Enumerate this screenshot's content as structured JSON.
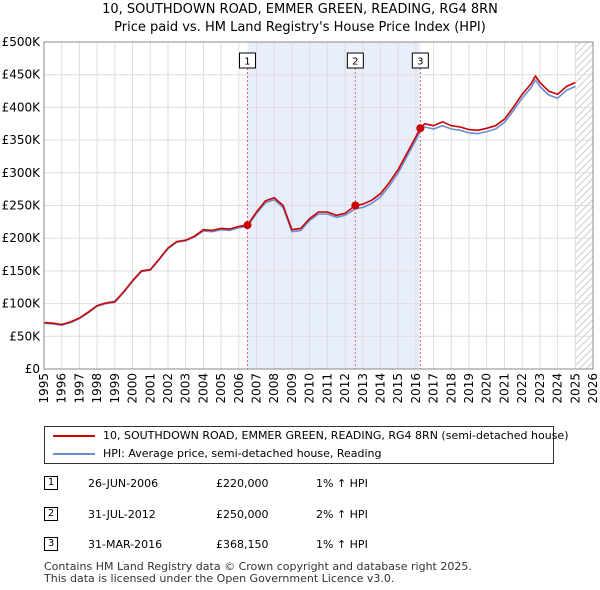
{
  "title_line1": "10, SOUTHDOWN ROAD, EMMER GREEN, READING, RG4 8RN",
  "title_line2": "Price paid vs. HM Land Registry's House Price Index (HPI)",
  "colors": {
    "property": "#cc0000",
    "hpi": "#6a8fd0",
    "shade": "#e8eefa",
    "marker_line": "#e06080"
  },
  "chart_data": {
    "type": "line",
    "title": "10, SOUTHDOWN ROAD, EMMER GREEN, READING, RG4 8RN",
    "subtitle": "Price paid vs. HM Land Registry's House Price Index (HPI)",
    "xlabel": "",
    "ylabel": "",
    "xlim": [
      1995,
      2026
    ],
    "ylim": [
      0,
      500000
    ],
    "grid": true,
    "y_ticks": [
      {
        "value": 0,
        "label": "£0"
      },
      {
        "value": 50000,
        "label": "£50K"
      },
      {
        "value": 100000,
        "label": "£100K"
      },
      {
        "value": 150000,
        "label": "£150K"
      },
      {
        "value": 200000,
        "label": "£200K"
      },
      {
        "value": 250000,
        "label": "£250K"
      },
      {
        "value": 300000,
        "label": "£300K"
      },
      {
        "value": 350000,
        "label": "£350K"
      },
      {
        "value": 400000,
        "label": "£400K"
      },
      {
        "value": 450000,
        "label": "£450K"
      },
      {
        "value": 500000,
        "label": "£500K"
      }
    ],
    "x_ticks": [
      "1995",
      "1996",
      "1997",
      "1998",
      "1999",
      "2000",
      "2001",
      "2002",
      "2003",
      "2004",
      "2005",
      "2006",
      "2007",
      "2008",
      "2009",
      "2010",
      "2011",
      "2012",
      "2013",
      "2014",
      "2015",
      "2016",
      "2017",
      "2018",
      "2019",
      "2020",
      "2021",
      "2022",
      "2023",
      "2024",
      "2025",
      "2026"
    ],
    "shaded_range": [
      2006.49,
      2016.25
    ],
    "hatched_from": 2025.0,
    "series": [
      {
        "name": "10, SOUTHDOWN ROAD, EMMER GREEN, READING, RG4 8RN (semi-detached house)",
        "color": "#cc0000",
        "x": [
          1995.0,
          1995.5,
          1996.0,
          1996.5,
          1997.0,
          1997.5,
          1998.0,
          1998.5,
          1999.0,
          1999.5,
          2000.0,
          2000.5,
          2001.0,
          2001.5,
          2002.0,
          2002.5,
          2003.0,
          2003.5,
          2004.0,
          2004.5,
          2005.0,
          2005.5,
          2006.0,
          2006.49,
          2007.0,
          2007.5,
          2008.0,
          2008.5,
          2009.0,
          2009.5,
          2010.0,
          2010.5,
          2011.0,
          2011.5,
          2012.0,
          2012.58,
          2013.0,
          2013.5,
          2014.0,
          2014.5,
          2015.0,
          2015.5,
          2016.0,
          2016.25,
          2016.5,
          2017.0,
          2017.5,
          2018.0,
          2018.5,
          2019.0,
          2019.5,
          2020.0,
          2020.5,
          2021.0,
          2021.5,
          2022.0,
          2022.5,
          2022.75,
          2023.0,
          2023.5,
          2024.0,
          2024.5,
          2025.0
        ],
        "values": [
          71000,
          70000,
          68000,
          72000,
          78000,
          87000,
          97000,
          101000,
          103000,
          118000,
          135000,
          150000,
          152000,
          168000,
          185000,
          195000,
          197000,
          203000,
          213000,
          212000,
          215000,
          214000,
          218000,
          220000,
          240000,
          257000,
          262000,
          250000,
          213000,
          215000,
          230000,
          240000,
          240000,
          235000,
          238000,
          250000,
          252000,
          258000,
          268000,
          285000,
          305000,
          330000,
          355000,
          368150,
          375000,
          372000,
          378000,
          372000,
          370000,
          366000,
          365000,
          368000,
          372000,
          382000,
          400000,
          420000,
          436000,
          448000,
          438000,
          425000,
          420000,
          432000,
          438000
        ]
      },
      {
        "name": "HPI: Average price, semi-detached house, Reading",
        "color": "#6a8fd0",
        "x": [
          1995.0,
          1995.5,
          1996.0,
          1996.5,
          1997.0,
          1997.5,
          1998.0,
          1998.5,
          1999.0,
          1999.5,
          2000.0,
          2000.5,
          2001.0,
          2001.5,
          2002.0,
          2002.5,
          2003.0,
          2003.5,
          2004.0,
          2004.5,
          2005.0,
          2005.5,
          2006.0,
          2006.49,
          2007.0,
          2007.5,
          2008.0,
          2008.5,
          2009.0,
          2009.5,
          2010.0,
          2010.5,
          2011.0,
          2011.5,
          2012.0,
          2012.58,
          2013.0,
          2013.5,
          2014.0,
          2014.5,
          2015.0,
          2015.5,
          2016.0,
          2016.25,
          2016.5,
          2017.0,
          2017.5,
          2018.0,
          2018.5,
          2019.0,
          2019.5,
          2020.0,
          2020.5,
          2021.0,
          2021.5,
          2022.0,
          2022.5,
          2022.75,
          2023.0,
          2023.5,
          2024.0,
          2024.5,
          2025.0
        ],
        "values": [
          70000,
          69000,
          67000,
          71000,
          77000,
          86000,
          96000,
          100000,
          102000,
          117000,
          134000,
          149000,
          151000,
          167000,
          184000,
          194000,
          196000,
          202000,
          211000,
          210000,
          213000,
          212000,
          216000,
          218000,
          238000,
          254000,
          259000,
          247000,
          210000,
          212000,
          227000,
          237000,
          237000,
          232000,
          235000,
          245000,
          247000,
          253000,
          263000,
          280000,
          300000,
          325000,
          350000,
          364000,
          370000,
          367000,
          372000,
          367000,
          365000,
          361000,
          360000,
          363000,
          367000,
          377000,
          395000,
          414000,
          430000,
          442000,
          432000,
          419000,
          414000,
          426000,
          432000
        ]
      }
    ],
    "sales": [
      {
        "id": "1",
        "x": 2006.49,
        "value": 220000,
        "date": "26-JUN-2006",
        "price": "£220,000",
        "hpi": "1% ↑ HPI"
      },
      {
        "id": "2",
        "x": 2012.58,
        "value": 250000,
        "date": "31-JUL-2012",
        "price": "£250,000",
        "hpi": "2% ↑ HPI"
      },
      {
        "id": "3",
        "x": 2016.25,
        "value": 368150,
        "date": "31-MAR-2016",
        "price": "£368,150",
        "hpi": "1% ↑ HPI"
      }
    ]
  },
  "legend": {
    "property_label": "10, SOUTHDOWN ROAD, EMMER GREEN, READING, RG4 8RN (semi-detached house)",
    "hpi_label": "HPI: Average price, semi-detached house, Reading"
  },
  "table": [
    {
      "id": "1",
      "date": "26-JUN-2006",
      "price": "£220,000",
      "hpi": "1% ↑ HPI"
    },
    {
      "id": "2",
      "date": "31-JUL-2012",
      "price": "£250,000",
      "hpi": "2% ↑ HPI"
    },
    {
      "id": "3",
      "date": "31-MAR-2016",
      "price": "£368,150",
      "hpi": "1% ↑ HPI"
    }
  ],
  "footer": {
    "line1": "Contains HM Land Registry data © Crown copyright and database right 2025.",
    "line2": "This data is licensed under the Open Government Licence v3.0."
  }
}
